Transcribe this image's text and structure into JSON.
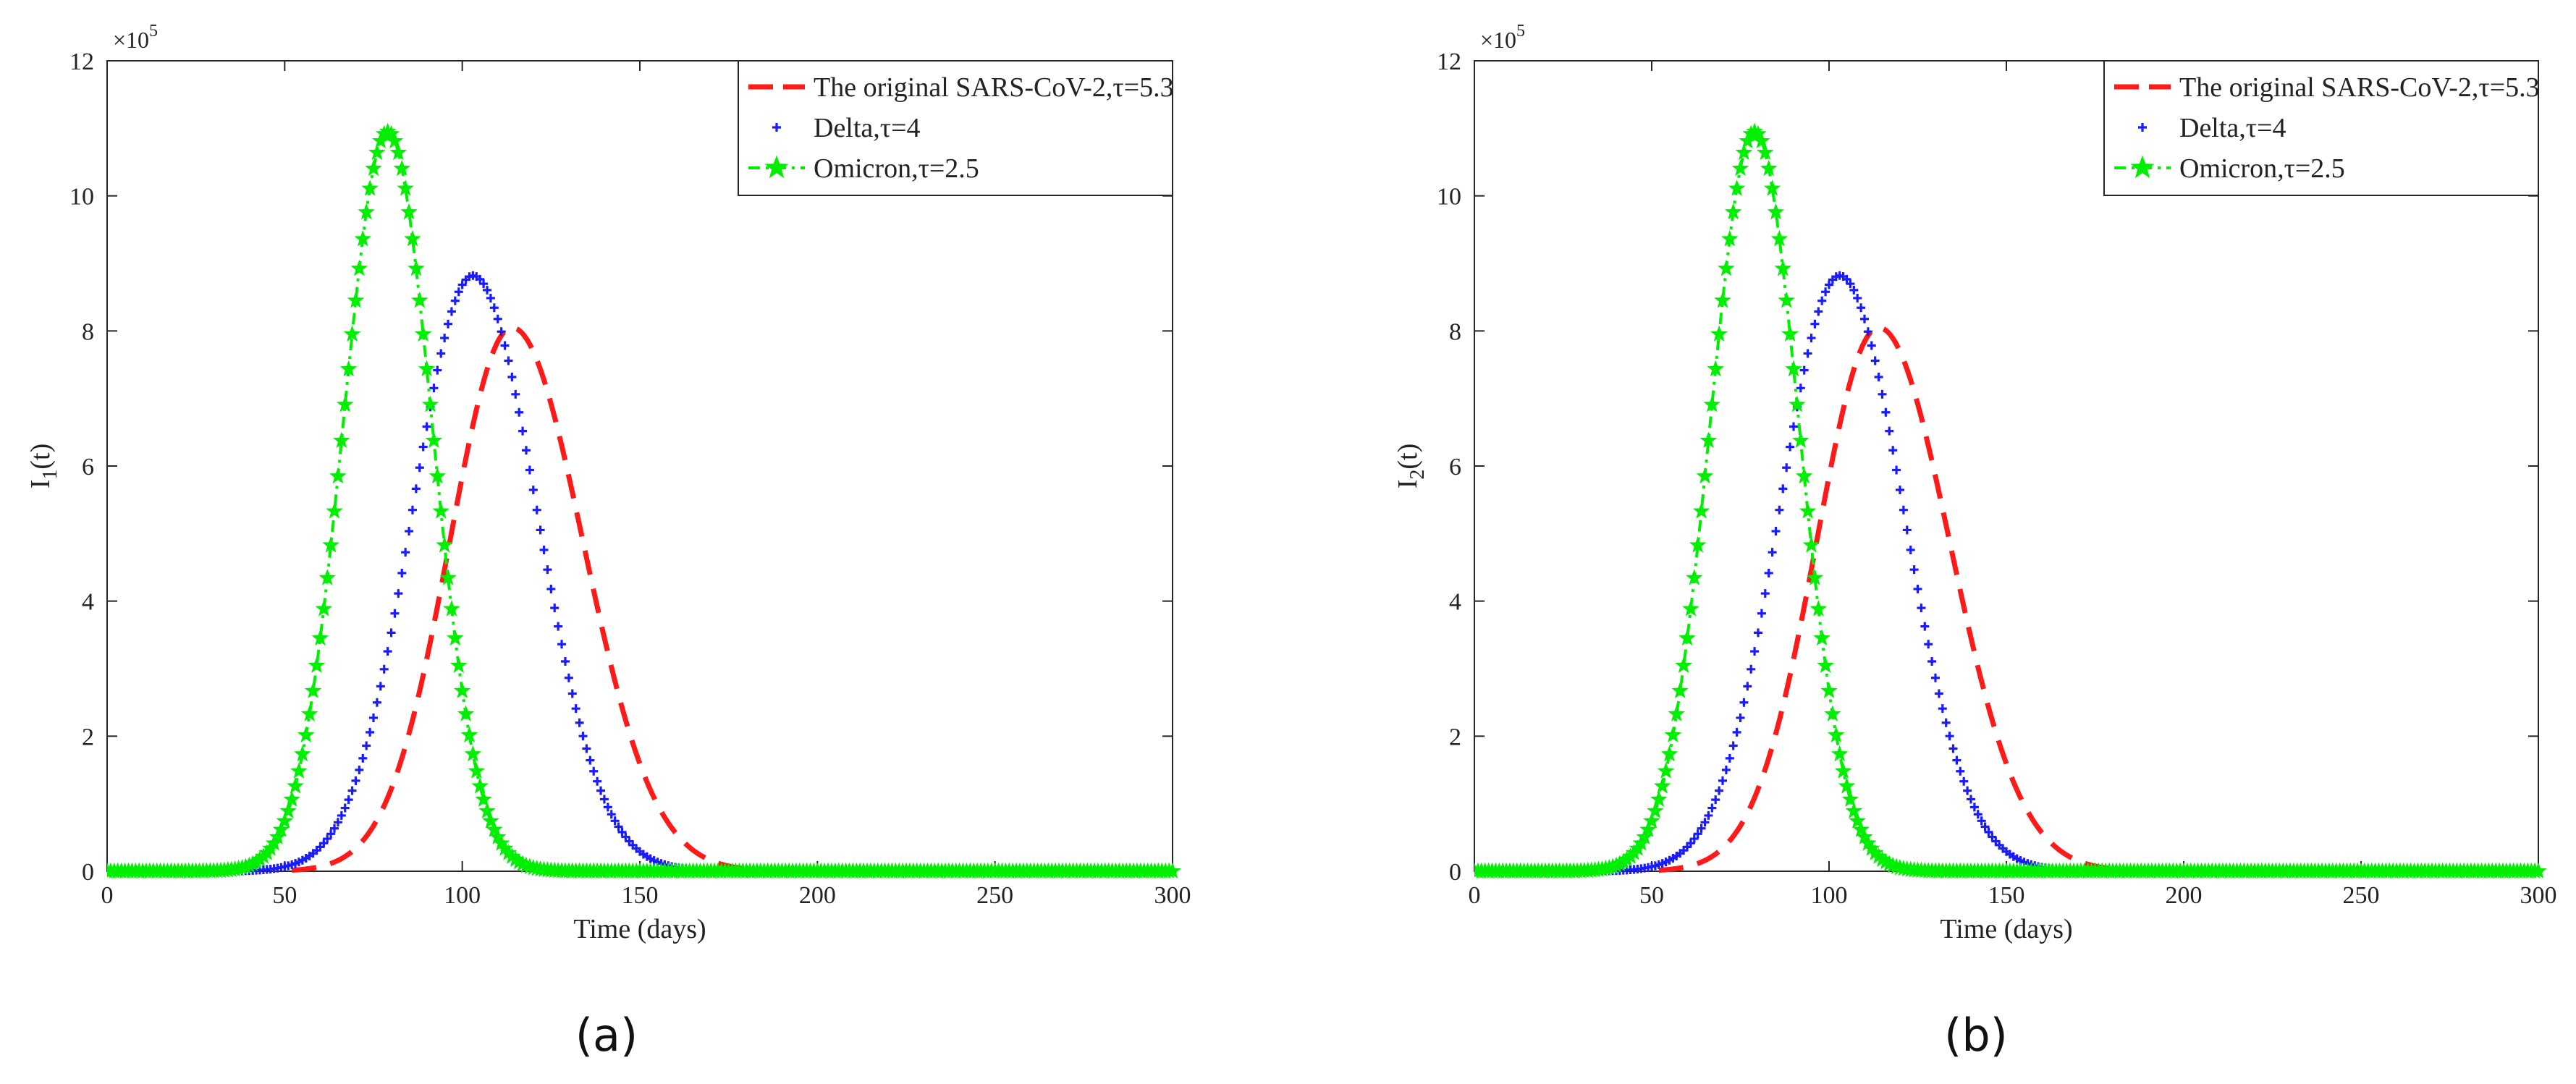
{
  "chart_data": [
    {
      "type": "line",
      "panel_label": "(a)",
      "xlabel": "Time (days)",
      "ylabel_base": "I",
      "ylabel_sub": "1",
      "ylabel_tail": "(t)",
      "y_multiplier_base": "×10",
      "y_multiplier_exp": "5",
      "xlim": [
        0,
        300
      ],
      "ylim": [
        0,
        12
      ],
      "xticks": [
        0,
        50,
        100,
        150,
        200,
        250,
        300
      ],
      "yticks": [
        0,
        2,
        4,
        6,
        8,
        10,
        12
      ],
      "grid": false,
      "legend_position": "top-right",
      "series": [
        {
          "name": "The original SARS-CoV-2,τ=5.3",
          "style": "dashed",
          "color": "#ff1a1a",
          "peak_x": 114,
          "peak_y": 8.05,
          "sigma_left": 17.5,
          "sigma_right": 20,
          "x_start": 52,
          "x_end": 182
        },
        {
          "name": "Delta,τ=4",
          "style": "plus-markers",
          "color": "#1a1aff",
          "peak_x": 103,
          "peak_y": 8.82,
          "sigma_left": 17,
          "sigma_right": 18,
          "x_start": 0,
          "x_end": 300
        },
        {
          "name": "Omicron,τ=2.5",
          "style": "dash-dot-star",
          "color": "#00ee00",
          "peak_x": 79,
          "peak_y": 10.95,
          "sigma_left": 12.5,
          "sigma_right": 12.5,
          "x_start": 0,
          "x_end": 300
        }
      ]
    },
    {
      "type": "line",
      "panel_label": "(b)",
      "xlabel": "Time (days)",
      "ylabel_base": "I",
      "ylabel_sub": "2",
      "ylabel_tail": "(t)",
      "y_multiplier_base": "×10",
      "y_multiplier_exp": "5",
      "xlim": [
        0,
        300
      ],
      "ylim": [
        0,
        12
      ],
      "xticks": [
        0,
        50,
        100,
        150,
        200,
        250,
        300
      ],
      "yticks": [
        0,
        2,
        4,
        6,
        8,
        10,
        12
      ],
      "grid": false,
      "legend_position": "top-right",
      "series": [
        {
          "name": "The original SARS-CoV-2,τ=5.3",
          "style": "dashed",
          "color": "#ff1a1a",
          "peak_x": 114,
          "peak_y": 8.05,
          "sigma_left": 17.5,
          "sigma_right": 20,
          "x_start": 52,
          "x_end": 182
        },
        {
          "name": "Delta,τ=4",
          "style": "plus-markers",
          "color": "#1a1aff",
          "peak_x": 103,
          "peak_y": 8.82,
          "sigma_left": 17,
          "sigma_right": 18,
          "x_start": 0,
          "x_end": 300
        },
        {
          "name": "Omicron,τ=2.5",
          "style": "dash-dot-star",
          "color": "#00ee00",
          "peak_x": 79,
          "peak_y": 10.95,
          "sigma_left": 12.5,
          "sigma_right": 12.5,
          "x_start": 0,
          "x_end": 300
        }
      ]
    }
  ]
}
